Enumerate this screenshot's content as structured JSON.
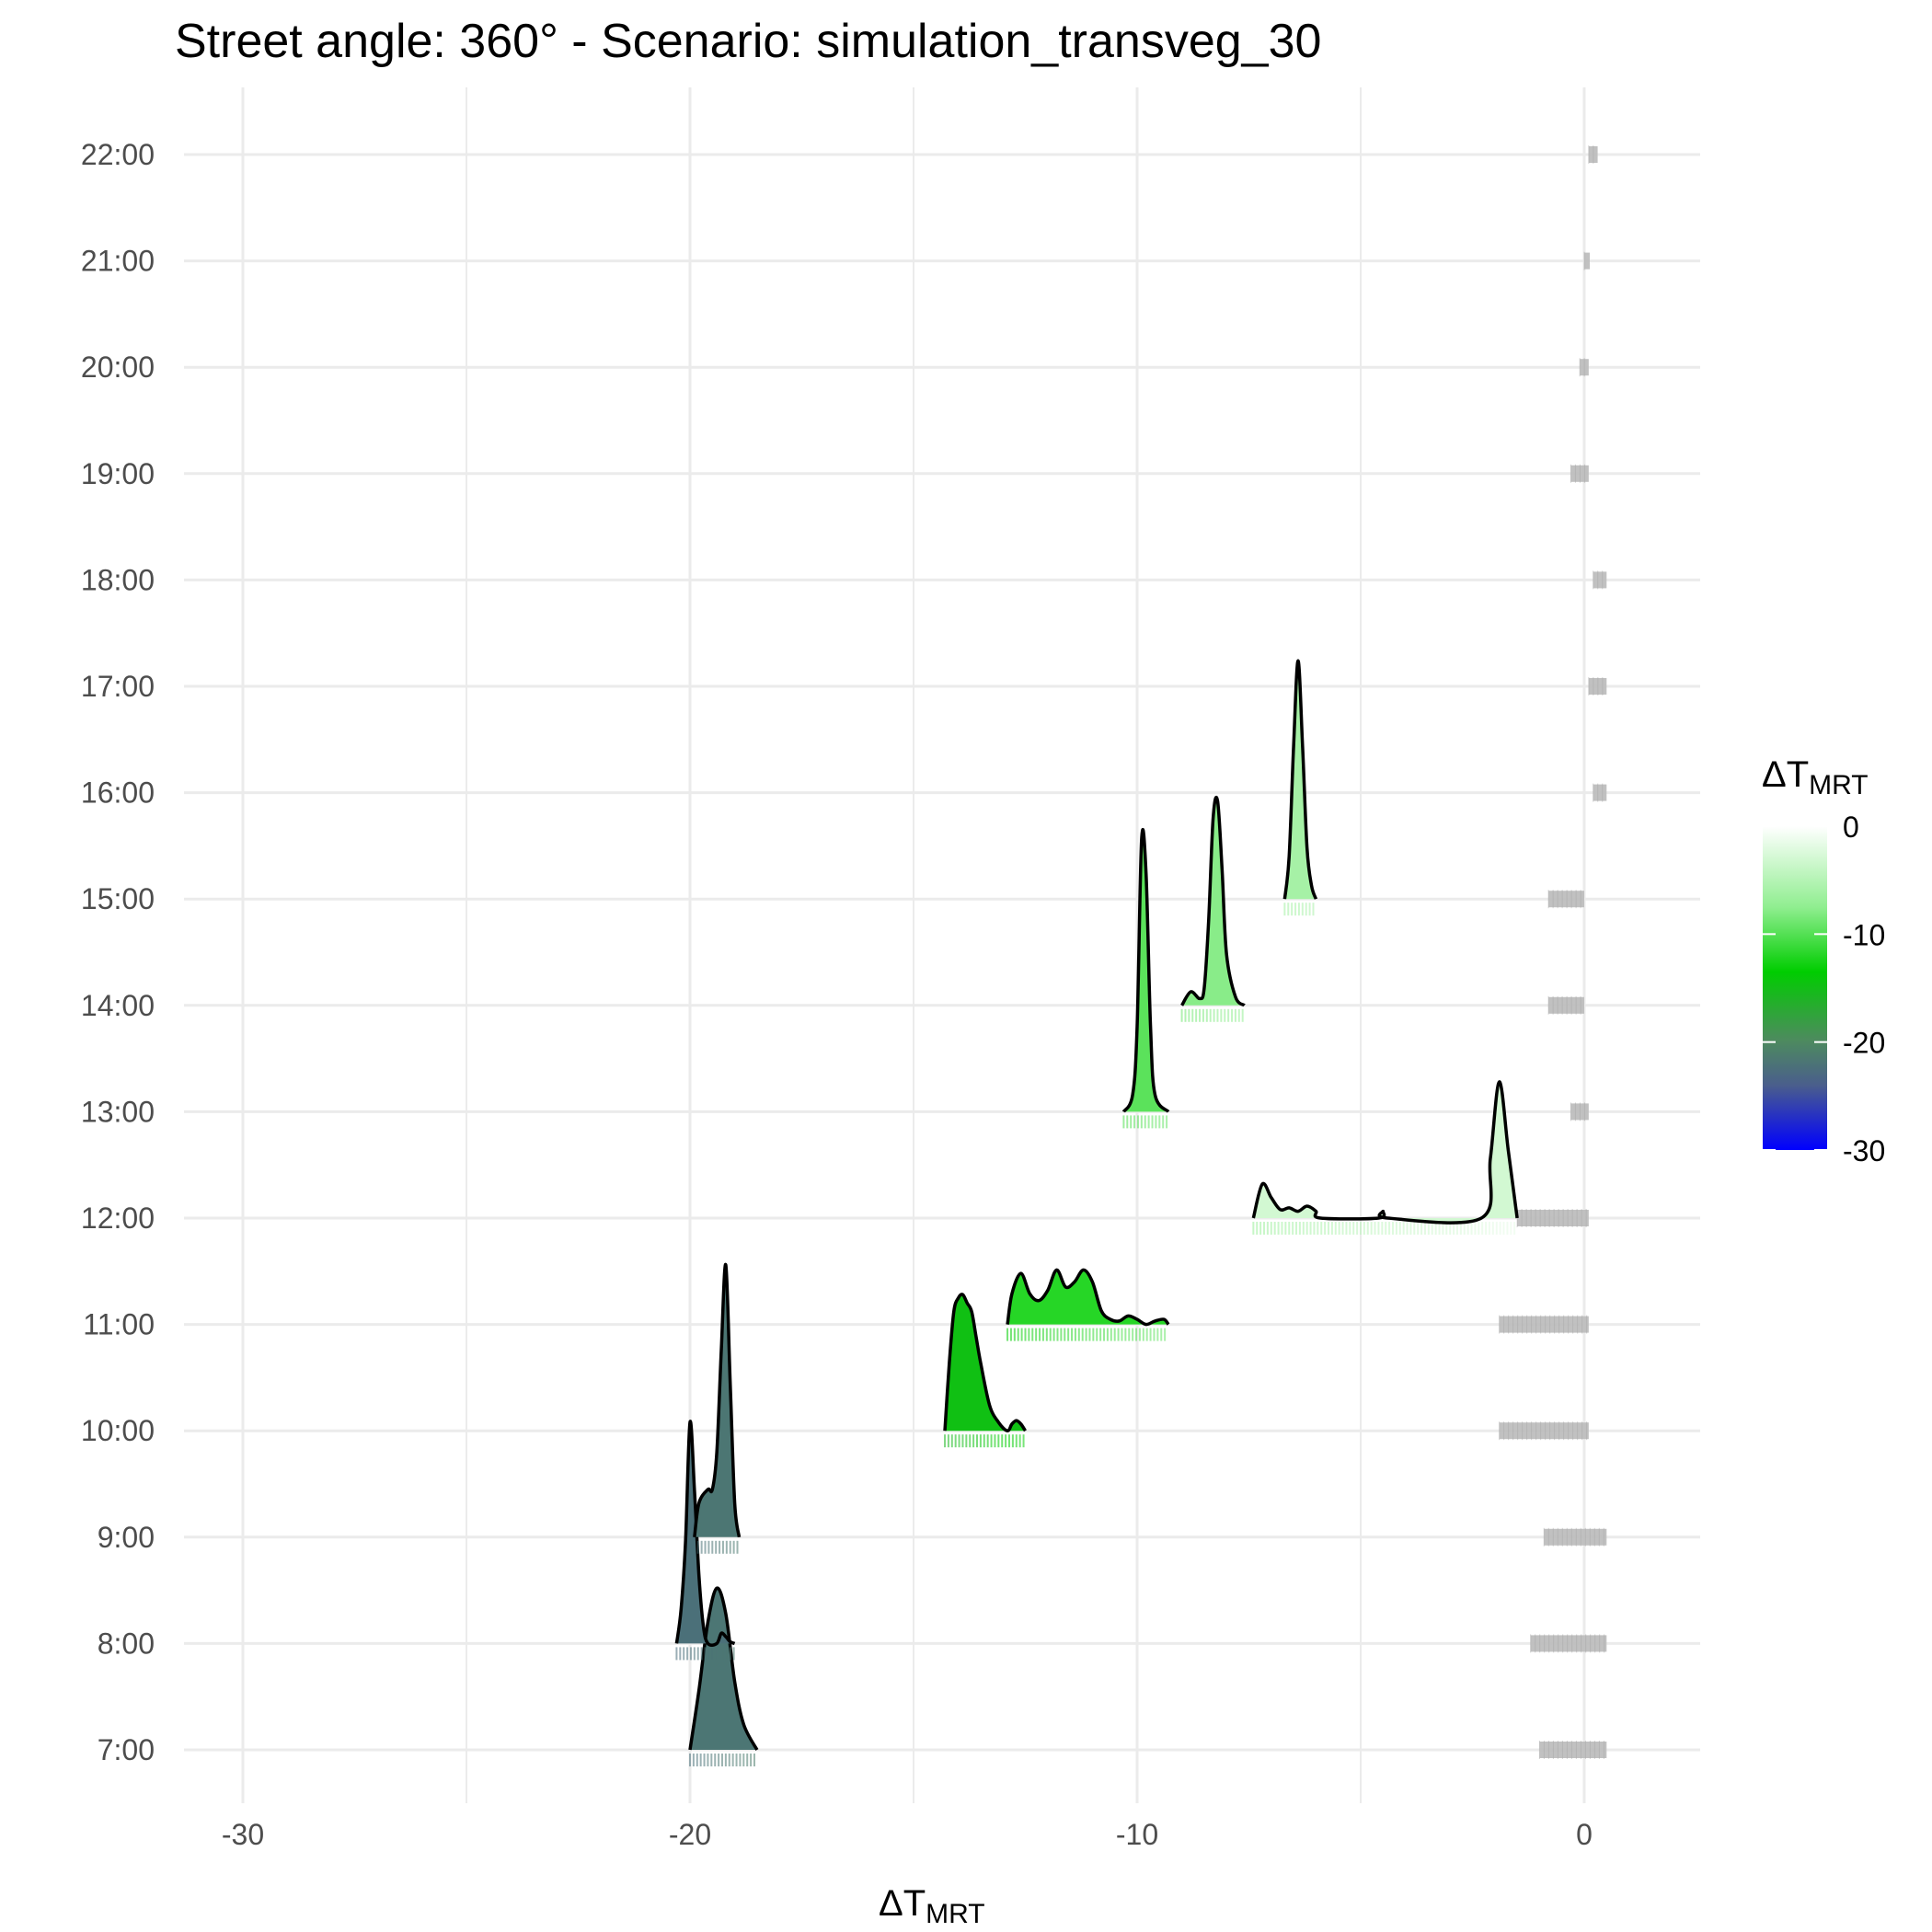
{
  "title": "Street angle: 360° - Scenario: simulation_transveg_30",
  "axis": {
    "x_label_main": "ΔT",
    "x_label_sub": "MRT"
  },
  "legend": {
    "title_main": "ΔT",
    "title_sub": "MRT",
    "labels": [
      "0",
      "-10",
      "-20",
      "-30"
    ],
    "gradient_colors": [
      "#ffffff",
      "#90ee90",
      "#00cd00",
      "#2e8b57",
      "#0000ff"
    ]
  },
  "chart_data": {
    "type": "ridgeline",
    "title": "Street angle: 360° - Scenario: simulation_transveg_30",
    "xlabel": "ΔT_MRT",
    "ylabel": "",
    "xlim": [
      -31,
      2.6
    ],
    "x_ticks": [
      -30,
      -20,
      -10,
      0
    ],
    "y_categories": [
      "7:00",
      "8:00",
      "9:00",
      "10:00",
      "11:00",
      "12:00",
      "13:00",
      "14:00",
      "15:00",
      "16:00",
      "17:00",
      "18:00",
      "19:00",
      "20:00",
      "21:00",
      "22:00"
    ],
    "grid": true,
    "legend_position": "right",
    "fill_scale": {
      "low": -30,
      "high": 0,
      "colors": [
        "#0000ff",
        "#2e8b57",
        "#00cd00",
        "#90ee90",
        "#ffffff"
      ]
    },
    "green_series": [
      {
        "hour": "7:00",
        "x": [
          -20.0,
          -19.8,
          -19.6,
          -19.4,
          -19.2,
          -19.0,
          -18.8,
          -18.5
        ],
        "density": [
          0.0,
          0.35,
          0.75,
          0.95,
          0.8,
          0.4,
          0.15,
          0.0
        ]
      },
      {
        "hour": "8:00",
        "x": [
          -20.3,
          -20.2,
          -20.1,
          -20.0,
          -19.9,
          -19.8,
          -19.7,
          -19.6,
          -19.4,
          -19.3,
          -19.2,
          -19.1,
          -19.0
        ],
        "density": [
          0.0,
          0.2,
          0.6,
          1.3,
          0.9,
          0.4,
          0.1,
          0.0,
          0.0,
          0.06,
          0.04,
          0.01,
          0.0
        ]
      },
      {
        "hour": "9:00",
        "x": [
          -19.9,
          -19.8,
          -19.6,
          -19.5,
          -19.4,
          -19.3,
          -19.2,
          -19.1,
          -19.0,
          -18.9
        ],
        "density": [
          0.0,
          0.2,
          0.28,
          0.28,
          0.5,
          1.1,
          1.6,
          0.9,
          0.2,
          0.0
        ]
      },
      {
        "hour": "10:00",
        "x": [
          -14.3,
          -14.2,
          -14.1,
          -14.0,
          -13.9,
          -13.8,
          -13.7,
          -13.6,
          -13.5,
          -13.3,
          -13.1,
          -12.9,
          -12.8,
          -12.7,
          -12.6,
          -12.5
        ],
        "density": [
          0.0,
          0.4,
          0.7,
          0.78,
          0.8,
          0.75,
          0.7,
          0.55,
          0.4,
          0.15,
          0.05,
          0.0,
          0.04,
          0.06,
          0.04,
          0.0
        ]
      },
      {
        "hour": "11:00",
        "x": [
          -12.9,
          -12.8,
          -12.6,
          -12.4,
          -12.2,
          -12.0,
          -11.8,
          -11.6,
          -11.4,
          -11.2,
          -11.0,
          -10.8,
          -10.6,
          -10.4,
          -10.2,
          -10.0,
          -9.8,
          -9.6,
          -9.4,
          -9.3
        ],
        "density": [
          0.0,
          0.18,
          0.3,
          0.18,
          0.14,
          0.2,
          0.32,
          0.22,
          0.25,
          0.32,
          0.25,
          0.08,
          0.03,
          0.02,
          0.05,
          0.03,
          0.0,
          0.02,
          0.03,
          0.0
        ]
      },
      {
        "hour": "12:00",
        "x": [
          -7.4,
          -7.2,
          -7.0,
          -6.8,
          -6.6,
          -6.4,
          -6.2,
          -6.0,
          -5.9,
          -4.6,
          -4.5,
          -4.4,
          -2.3,
          -2.1,
          -1.9,
          -1.7,
          -1.5
        ],
        "density": [
          0.0,
          0.2,
          0.12,
          0.05,
          0.06,
          0.04,
          0.07,
          0.04,
          0.0,
          0.0,
          0.04,
          0.0,
          0.0,
          0.35,
          0.8,
          0.4,
          0.0
        ]
      },
      {
        "hour": "13:00",
        "x": [
          -10.3,
          -10.1,
          -10.0,
          -9.9,
          -9.8,
          -9.7,
          -9.6,
          -9.3
        ],
        "density": [
          0.0,
          0.1,
          0.5,
          1.6,
          1.4,
          0.5,
          0.1,
          0.0
        ]
      },
      {
        "hour": "14:00",
        "x": [
          -9.0,
          -8.8,
          -8.6,
          -8.5,
          -8.4,
          -8.3,
          -8.2,
          -8.1,
          -8.0,
          -7.8,
          -7.6
        ],
        "density": [
          0.0,
          0.08,
          0.04,
          0.1,
          0.5,
          1.1,
          1.2,
          0.8,
          0.3,
          0.05,
          0.0
        ]
      },
      {
        "hour": "15:00",
        "x": [
          -6.7,
          -6.6,
          -6.5,
          -6.4,
          -6.3,
          -6.2,
          -6.1,
          -6.0
        ],
        "density": [
          0.0,
          0.25,
          0.9,
          1.4,
          0.9,
          0.3,
          0.08,
          0.0
        ]
      }
    ],
    "grey_rugs": [
      {
        "hour": "7:00",
        "x_range": [
          -1.0,
          0.5
        ]
      },
      {
        "hour": "8:00",
        "x_range": [
          -1.2,
          0.5
        ]
      },
      {
        "hour": "9:00",
        "x_range": [
          -0.9,
          0.5
        ]
      },
      {
        "hour": "10:00",
        "x_range": [
          -1.9,
          0.1
        ]
      },
      {
        "hour": "11:00",
        "x_range": [
          -1.9,
          0.1
        ]
      },
      {
        "hour": "12:00",
        "x_range": [
          -1.5,
          0.1
        ]
      },
      {
        "hour": "13:00",
        "x_range": [
          -0.3,
          0.1
        ]
      },
      {
        "hour": "14:00",
        "x_range": [
          -0.8,
          0.0
        ]
      },
      {
        "hour": "15:00",
        "x_range": [
          -0.8,
          0.0
        ]
      },
      {
        "hour": "16:00",
        "x_range": [
          0.2,
          0.5
        ]
      },
      {
        "hour": "17:00",
        "x_range": [
          0.1,
          0.5
        ]
      },
      {
        "hour": "18:00",
        "x_range": [
          0.2,
          0.5
        ]
      },
      {
        "hour": "19:00",
        "x_range": [
          -0.3,
          0.1
        ]
      },
      {
        "hour": "20:00",
        "x_range": [
          -0.1,
          0.1
        ]
      },
      {
        "hour": "21:00",
        "x_range": [
          0.0,
          0.1
        ]
      },
      {
        "hour": "22:00",
        "x_range": [
          0.1,
          0.3
        ]
      }
    ]
  }
}
